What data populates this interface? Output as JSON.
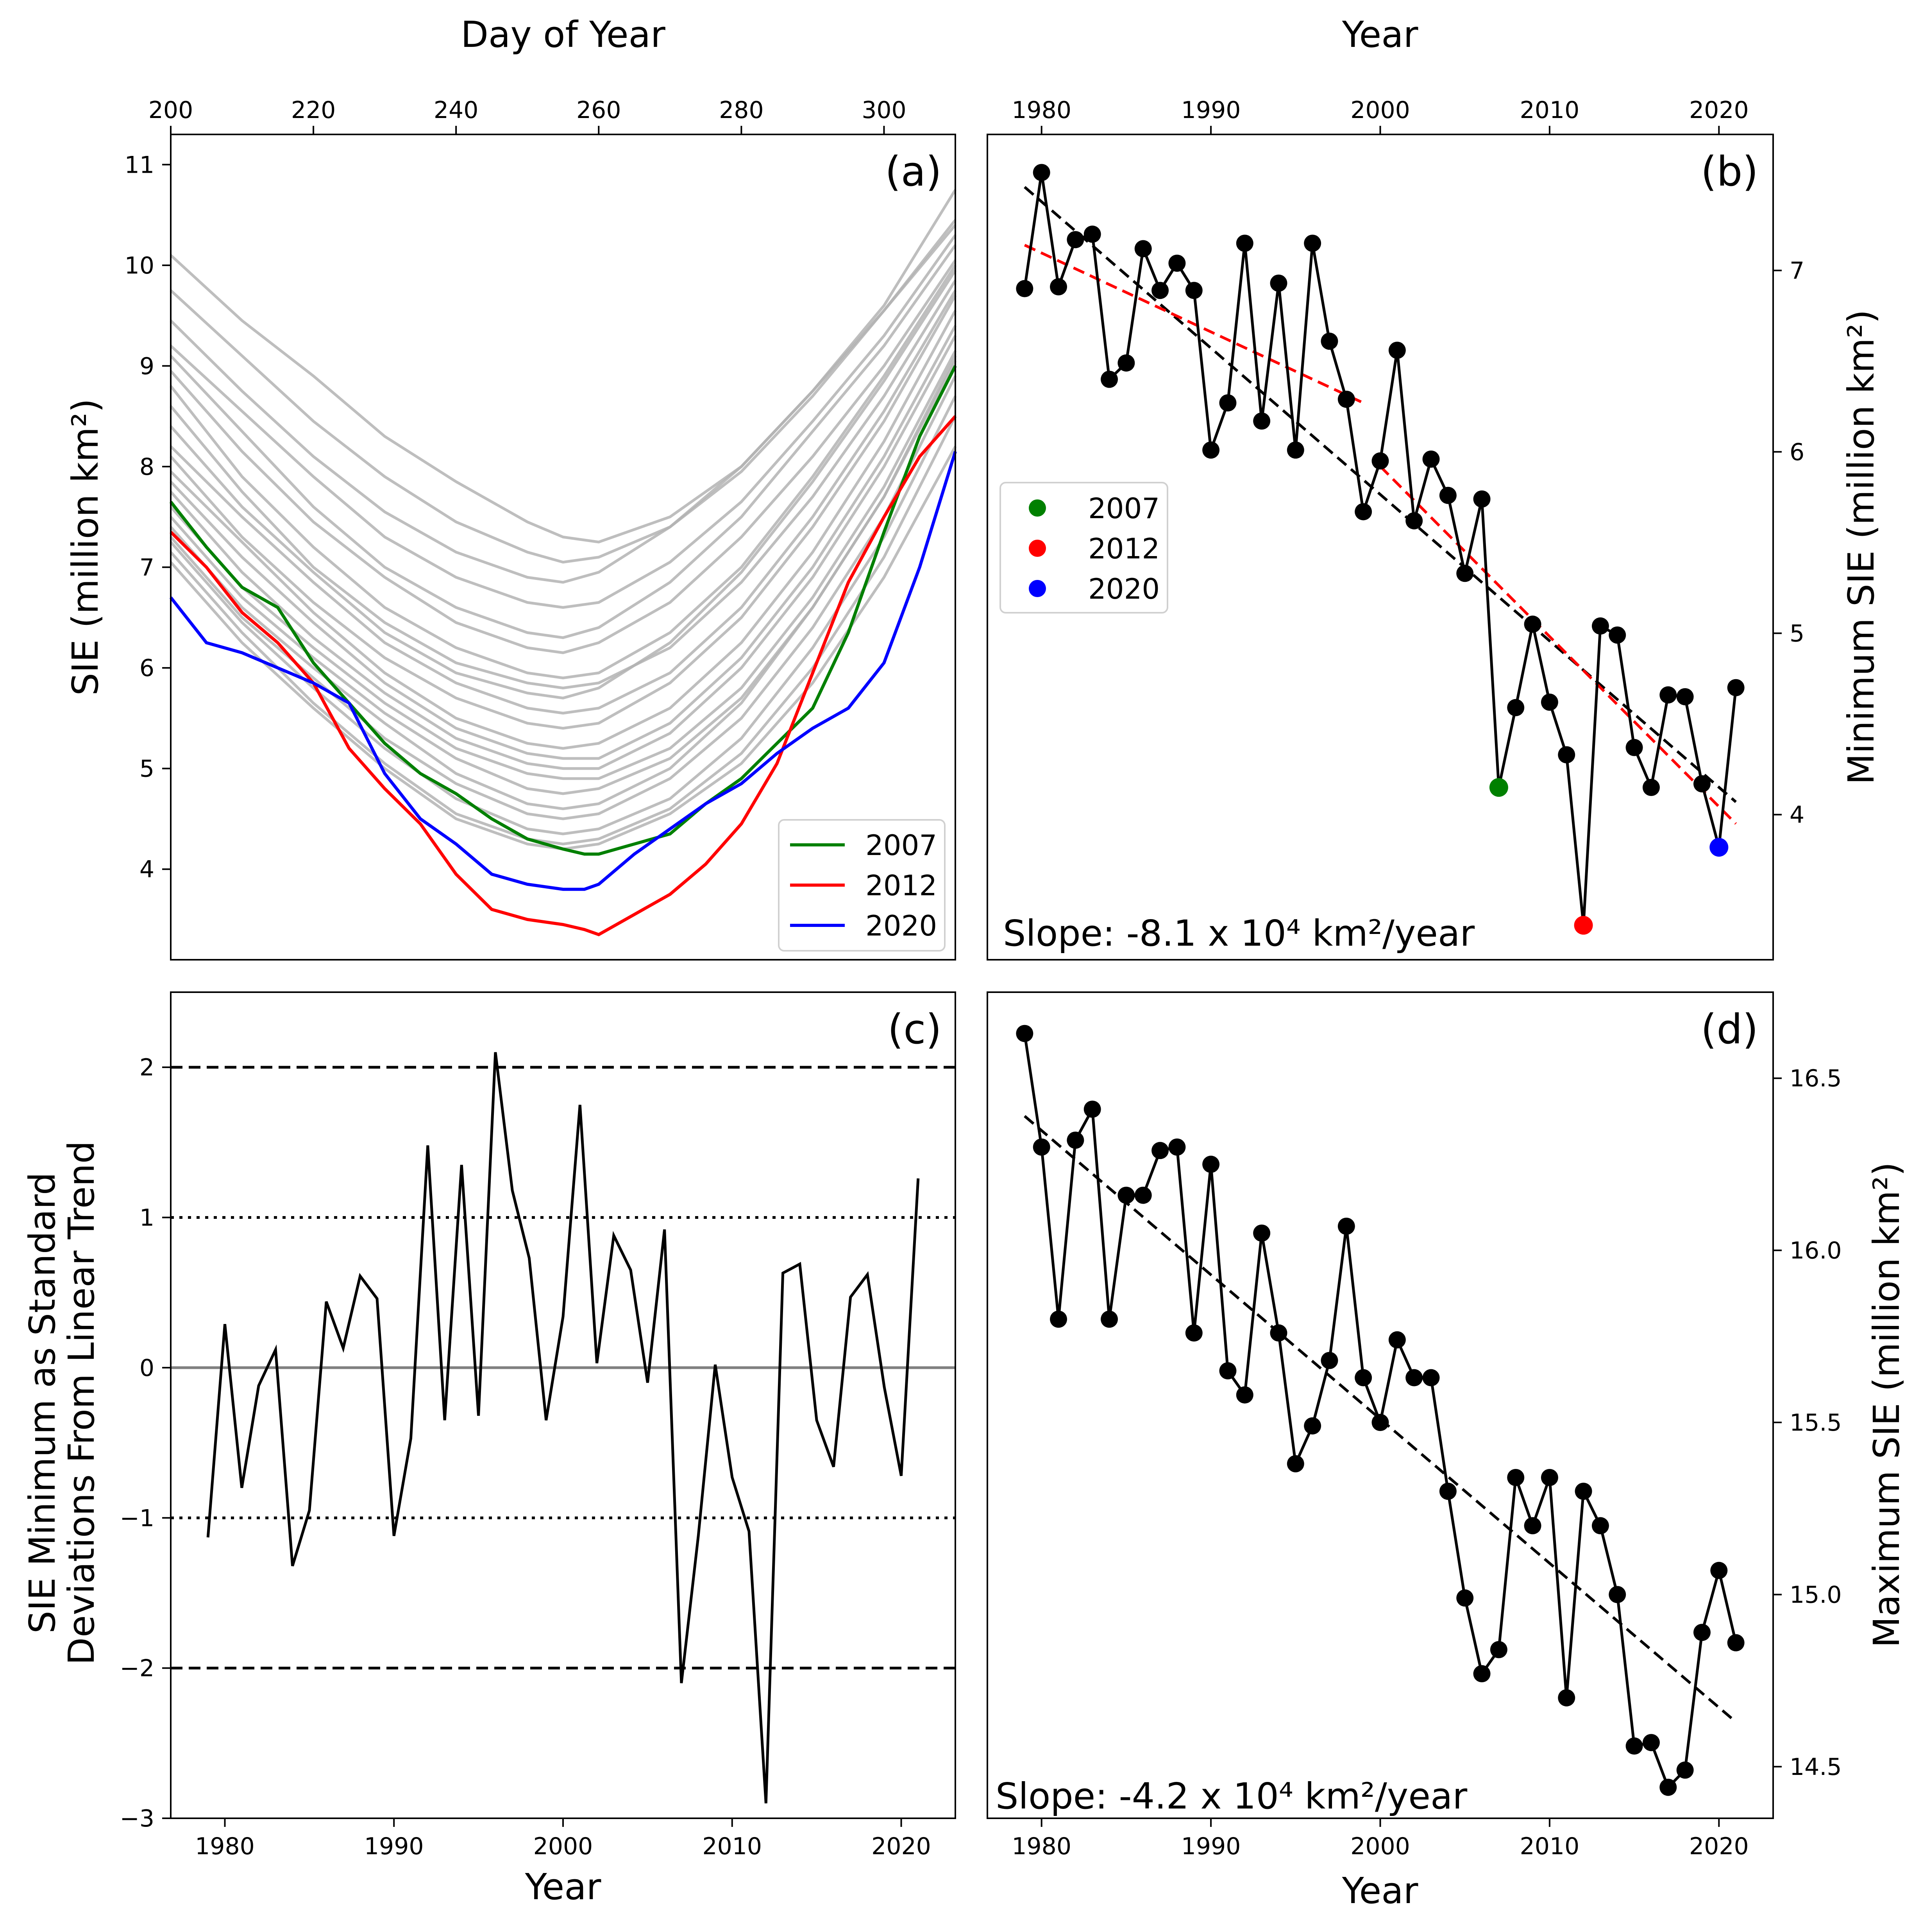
{
  "figure": {
    "panels": [
      "a",
      "b",
      "c",
      "d"
    ]
  },
  "chart_data": [
    {
      "panel_label": "(a)",
      "type": "line",
      "title": "",
      "xlabel": "Day of Year",
      "xlabel_position": "top",
      "ylabel": "SIE (million km²)",
      "xlim": [
        200,
        310
      ],
      "ylim": [
        3.1,
        11.3
      ],
      "xticks": [
        200,
        220,
        240,
        260,
        280,
        300
      ],
      "yticks": [
        4,
        5,
        6,
        7,
        8,
        9,
        10,
        11
      ],
      "grid": false,
      "legend_position": "bottom-right",
      "background_ensemble": {
        "color": "#b3b3b3",
        "x": [
          200,
          210,
          220,
          230,
          240,
          250,
          255,
          260,
          270,
          280,
          290,
          300,
          310
        ],
        "values_per_year": [
          [
            10.1,
            9.45,
            8.9,
            8.3,
            7.85,
            7.45,
            7.3,
            7.25,
            7.5,
            8.0,
            8.75,
            9.6,
            10.75
          ],
          [
            9.75,
            9.1,
            8.45,
            7.9,
            7.45,
            7.15,
            7.05,
            7.1,
            7.4,
            7.95,
            8.7,
            9.55,
            10.45
          ],
          [
            9.45,
            8.75,
            8.1,
            7.55,
            7.15,
            6.9,
            6.85,
            6.95,
            7.4,
            8.0,
            8.75,
            9.55,
            10.4
          ],
          [
            9.2,
            8.55,
            7.9,
            7.3,
            6.9,
            6.65,
            6.6,
            6.65,
            7.05,
            7.65,
            8.45,
            9.3,
            10.3
          ],
          [
            9.1,
            8.35,
            7.6,
            7.0,
            6.6,
            6.35,
            6.3,
            6.4,
            6.85,
            7.5,
            8.35,
            9.2,
            10.2
          ],
          [
            8.95,
            8.15,
            7.45,
            6.9,
            6.45,
            6.2,
            6.15,
            6.25,
            6.65,
            7.3,
            8.1,
            9.0,
            10.05
          ],
          [
            8.8,
            7.9,
            7.2,
            6.6,
            6.2,
            5.95,
            5.9,
            5.95,
            6.35,
            7.0,
            7.9,
            8.9,
            10.0
          ],
          [
            8.6,
            7.75,
            7.0,
            6.45,
            6.05,
            5.85,
            5.8,
            5.85,
            6.2,
            6.85,
            7.7,
            8.7,
            9.85
          ],
          [
            8.4,
            7.6,
            6.95,
            6.35,
            5.95,
            5.75,
            5.7,
            5.8,
            6.25,
            6.95,
            7.85,
            8.85,
            9.95
          ],
          [
            8.2,
            7.5,
            6.85,
            6.25,
            5.85,
            5.6,
            5.55,
            5.6,
            5.95,
            6.6,
            7.5,
            8.55,
            9.75
          ],
          [
            8.1,
            7.3,
            6.65,
            6.1,
            5.7,
            5.45,
            5.4,
            5.45,
            5.85,
            6.5,
            7.4,
            8.45,
            9.7
          ],
          [
            7.95,
            7.25,
            6.55,
            5.95,
            5.5,
            5.25,
            5.2,
            5.25,
            5.6,
            6.25,
            7.15,
            8.25,
            9.55
          ],
          [
            7.85,
            7.1,
            6.45,
            5.85,
            5.4,
            5.15,
            5.1,
            5.1,
            5.45,
            6.1,
            7.0,
            8.1,
            9.4
          ],
          [
            7.75,
            6.95,
            6.3,
            5.75,
            5.3,
            5.05,
            5.0,
            5.0,
            5.35,
            6.0,
            6.9,
            8.0,
            9.3
          ],
          [
            7.6,
            6.8,
            6.2,
            5.65,
            5.2,
            4.95,
            4.9,
            4.9,
            5.2,
            5.8,
            6.7,
            7.8,
            9.15
          ],
          [
            7.5,
            6.7,
            6.1,
            5.55,
            5.1,
            4.8,
            4.75,
            4.8,
            5.1,
            5.7,
            6.6,
            7.7,
            9.05
          ],
          [
            7.4,
            6.6,
            6.0,
            5.45,
            4.95,
            4.65,
            4.6,
            4.65,
            5.0,
            5.65,
            6.6,
            7.7,
            9.1
          ],
          [
            7.3,
            6.5,
            5.9,
            5.3,
            4.85,
            4.55,
            4.5,
            4.55,
            4.9,
            5.5,
            6.4,
            7.5,
            8.9
          ],
          [
            7.25,
            6.45,
            5.8,
            5.2,
            4.7,
            4.4,
            4.35,
            4.4,
            4.7,
            5.3,
            6.2,
            7.3,
            8.7
          ],
          [
            7.15,
            6.35,
            5.65,
            5.05,
            4.55,
            4.3,
            4.25,
            4.3,
            4.6,
            5.15,
            6.0,
            7.1,
            8.5
          ],
          [
            7.05,
            6.25,
            5.6,
            5.0,
            4.5,
            4.25,
            4.2,
            4.25,
            4.55,
            5.05,
            5.85,
            6.9,
            8.2
          ]
        ]
      },
      "x": [
        200,
        205,
        210,
        215,
        220,
        225,
        230,
        235,
        240,
        245,
        250,
        255,
        258,
        260,
        265,
        270,
        275,
        280,
        285,
        290,
        295,
        300,
        305,
        310
      ],
      "series": [
        {
          "name": "2007",
          "color": "#008000",
          "values": [
            7.65,
            7.2,
            6.8,
            6.6,
            6.05,
            5.65,
            5.25,
            4.95,
            4.75,
            4.5,
            4.3,
            4.2,
            4.15,
            4.15,
            4.25,
            4.35,
            4.65,
            4.9,
            5.25,
            5.6,
            6.35,
            7.35,
            8.3,
            9.0
          ]
        },
        {
          "name": "2012",
          "color": "#ff0000",
          "values": [
            7.35,
            7.0,
            6.55,
            6.25,
            5.85,
            5.2,
            4.8,
            4.45,
            3.95,
            3.6,
            3.5,
            3.45,
            3.4,
            3.35,
            3.55,
            3.75,
            4.05,
            4.45,
            5.05,
            5.95,
            6.85,
            7.5,
            8.1,
            8.5
          ]
        },
        {
          "name": "2020",
          "color": "#0000ff",
          "values": [
            6.7,
            6.25,
            6.15,
            6.0,
            5.85,
            5.65,
            4.95,
            4.5,
            4.25,
            3.95,
            3.85,
            3.8,
            3.8,
            3.85,
            4.15,
            4.4,
            4.65,
            4.85,
            5.15,
            5.4,
            5.6,
            6.05,
            7.0,
            8.15
          ]
        }
      ]
    },
    {
      "panel_label": "(b)",
      "type": "scatter",
      "title": "",
      "xlabel": "Year",
      "xlabel_position": "top",
      "ylabel": "Minimum SIE (million km²)",
      "ylabel_position": "right",
      "xlim": [
        1976.8,
        2023.2
      ],
      "ylim": [
        3.2,
        7.75
      ],
      "xticks": [
        1980,
        1990,
        2000,
        2010,
        2020
      ],
      "yticks": [
        4,
        5,
        6,
        7
      ],
      "grid": false,
      "legend_position": "center-left",
      "annotation": "Slope: -8.1 x 10⁴ km²/year",
      "x": [
        1979,
        1980,
        1981,
        1982,
        1983,
        1984,
        1985,
        1986,
        1987,
        1988,
        1989,
        1990,
        1991,
        1992,
        1993,
        1994,
        1995,
        1996,
        1997,
        1998,
        1999,
        2000,
        2001,
        2002,
        2003,
        2004,
        2005,
        2006,
        2007,
        2008,
        2009,
        2010,
        2011,
        2012,
        2013,
        2014,
        2015,
        2016,
        2017,
        2018,
        2019,
        2020,
        2021
      ],
      "series": [
        {
          "name": "Minimum SIE",
          "color": "#000000",
          "marker": "circle",
          "values": [
            6.9,
            7.54,
            6.91,
            7.17,
            7.2,
            6.4,
            6.49,
            7.12,
            6.89,
            7.04,
            6.89,
            6.01,
            6.27,
            7.15,
            6.17,
            6.93,
            6.01,
            7.15,
            6.61,
            6.29,
            5.67,
            5.95,
            6.56,
            5.62,
            5.96,
            5.76,
            5.33,
            5.74,
            4.15,
            4.59,
            5.05,
            4.62,
            4.33,
            3.39,
            5.04,
            4.99,
            4.37,
            4.15,
            4.66,
            4.65,
            4.17,
            3.82,
            4.7
          ]
        },
        {
          "name": "2007",
          "color": "#008000",
          "highlight": {
            "x": 2007,
            "y": 4.15
          }
        },
        {
          "name": "2012",
          "color": "#ff0000",
          "highlight": {
            "x": 2012,
            "y": 3.39
          }
        },
        {
          "name": "2020",
          "color": "#0000ff",
          "highlight": {
            "x": 2020,
            "y": 3.82
          }
        }
      ],
      "trend_lines": [
        {
          "color": "#000000",
          "style": "dashed",
          "x": [
            1979,
            2021
          ],
          "y": [
            7.46,
            4.07
          ]
        },
        {
          "color": "#ff0000",
          "style": "dashed",
          "x": [
            1979,
            1999
          ],
          "y": [
            7.14,
            6.27
          ]
        },
        {
          "color": "#ff0000",
          "style": "dashed",
          "x": [
            2000,
            2021
          ],
          "y": [
            5.92,
            3.95
          ]
        }
      ]
    },
    {
      "panel_label": "(c)",
      "type": "line",
      "title": "",
      "xlabel": "Year",
      "ylabel": "SIE Minimum as Standard\nDeviations From Linear Trend",
      "xlim": [
        1976.8,
        2023.2
      ],
      "ylim": [
        -3,
        2.5
      ],
      "xticks": [
        1980,
        1990,
        2000,
        2010,
        2020
      ],
      "yticks": [
        -3,
        -2,
        -1,
        0,
        1,
        2
      ],
      "grid": false,
      "reference_lines": [
        {
          "y": 2,
          "style": "dashed",
          "color": "#000000"
        },
        {
          "y": 1,
          "style": "dotted",
          "color": "#000000"
        },
        {
          "y": 0,
          "style": "solid",
          "color": "#808080"
        },
        {
          "y": -1,
          "style": "dotted",
          "color": "#000000"
        },
        {
          "y": -2,
          "style": "dashed",
          "color": "#000000"
        }
      ],
      "x": [
        1979,
        1980,
        1981,
        1982,
        1983,
        1984,
        1985,
        1986,
        1987,
        1988,
        1989,
        1990,
        1991,
        1992,
        1993,
        1994,
        1995,
        1996,
        1997,
        1998,
        1999,
        2000,
        2001,
        2002,
        2003,
        2004,
        2005,
        2006,
        2007,
        2008,
        2009,
        2010,
        2011,
        2012,
        2013,
        2014,
        2015,
        2016,
        2017,
        2018,
        2019,
        2020,
        2021
      ],
      "series": [
        {
          "name": "Standardized residual",
          "color": "#000000",
          "values": [
            -1.13,
            0.29,
            -0.8,
            -0.12,
            0.12,
            -1.32,
            -0.95,
            0.44,
            0.13,
            0.61,
            0.46,
            -1.12,
            -0.47,
            1.48,
            -0.35,
            1.35,
            -0.32,
            2.1,
            1.18,
            0.73,
            -0.35,
            0.34,
            1.75,
            0.03,
            0.88,
            0.65,
            -0.1,
            0.92,
            -2.1,
            -1.12,
            0.02,
            -0.73,
            -1.09,
            -2.9,
            0.63,
            0.69,
            -0.35,
            -0.66,
            0.47,
            0.62,
            -0.13,
            -0.72,
            1.26
          ]
        }
      ]
    },
    {
      "panel_label": "(d)",
      "type": "scatter",
      "title": "",
      "xlabel": "Year",
      "ylabel": "Maximum SIE (million km²)",
      "ylabel_position": "right",
      "xlim": [
        1976.8,
        2023.2
      ],
      "ylim": [
        14.35,
        16.75
      ],
      "xticks": [
        1980,
        1990,
        2000,
        2010,
        2020
      ],
      "yticks": [
        14.5,
        15.0,
        15.5,
        16.0,
        16.5
      ],
      "grid": false,
      "annotation": "Slope: -4.2 x 10⁴ km²/year",
      "x": [
        1979,
        1980,
        1981,
        1982,
        1983,
        1984,
        1985,
        1986,
        1987,
        1988,
        1989,
        1990,
        1991,
        1992,
        1993,
        1994,
        1995,
        1996,
        1997,
        1998,
        1999,
        2000,
        2001,
        2002,
        2003,
        2004,
        2005,
        2006,
        2007,
        2008,
        2009,
        2010,
        2011,
        2012,
        2013,
        2014,
        2015,
        2016,
        2017,
        2018,
        2019,
        2020,
        2021
      ],
      "series": [
        {
          "name": "Maximum SIE",
          "color": "#000000",
          "marker": "circle",
          "values": [
            16.63,
            16.3,
            15.8,
            16.32,
            16.41,
            15.8,
            16.16,
            16.16,
            16.29,
            16.3,
            15.76,
            16.25,
            15.65,
            15.58,
            16.05,
            15.76,
            15.38,
            15.49,
            15.68,
            16.07,
            15.63,
            15.5,
            15.74,
            15.63,
            15.63,
            15.3,
            14.99,
            14.77,
            14.84,
            15.34,
            15.2,
            15.34,
            14.7,
            15.3,
            15.2,
            15.0,
            14.56,
            14.57,
            14.44,
            14.49,
            14.89,
            15.07,
            14.86
          ]
        }
      ],
      "trend_lines": [
        {
          "color": "#000000",
          "style": "dashed",
          "x": [
            1979,
            2021
          ],
          "y": [
            16.39,
            14.63
          ]
        }
      ]
    }
  ]
}
